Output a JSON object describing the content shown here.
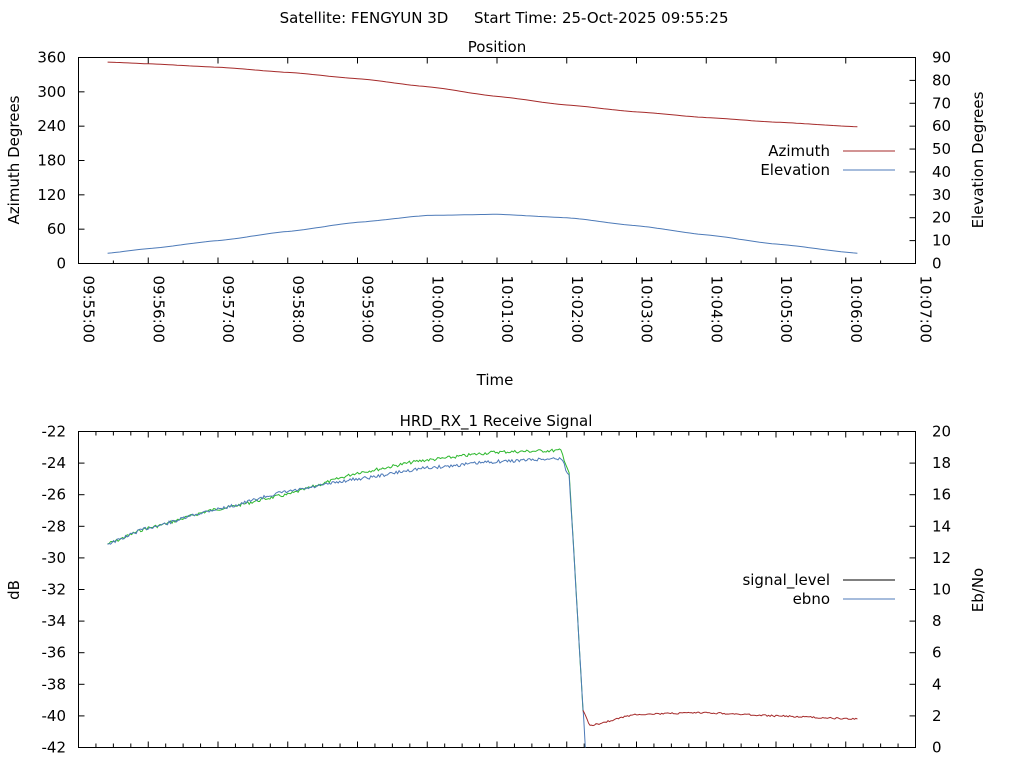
{
  "header": {
    "satellite_label": "Satellite: FENGYUN 3D",
    "start_label": "Start Time: 25-Oct-2025 09:55:25"
  },
  "colors": {
    "azimuth": "#a52a2a",
    "elevation": "#4d7ab8",
    "signal_level": "#000000",
    "ebno": "#4d7ab8",
    "signal_green": "#2eb82e",
    "signal_after": "#a52a2a"
  },
  "chart_data": [
    {
      "type": "line",
      "title": "Position",
      "xlabel": "Time",
      "ylabel": "Azimuth Degrees",
      "y2label": "Elevation Degrees",
      "ylim": [
        0,
        360
      ],
      "y2lim": [
        0,
        90
      ],
      "yticks": [
        "360",
        "300",
        "240",
        "180",
        "120",
        "60",
        "0"
      ],
      "y2ticks": [
        "90",
        "80",
        "70",
        "60",
        "50",
        "40",
        "30",
        "20",
        "10",
        "0"
      ],
      "xticks": [
        "09:55:00",
        "09:56:00",
        "09:57:00",
        "09:58:00",
        "09:59:00",
        "10:00:00",
        "10:01:00",
        "10:02:00",
        "10:03:00",
        "10:04:00",
        "10:05:00",
        "10:06:00",
        "10:07:00"
      ],
      "legend": "right",
      "series": [
        {
          "name": "Azimuth",
          "axis": "left",
          "x": [
            "09:55:25",
            "09:56:00",
            "09:57:00",
            "09:58:00",
            "09:59:00",
            "10:00:00",
            "10:01:00",
            "10:02:00",
            "10:03:00",
            "10:04:00",
            "10:05:00",
            "10:06:10"
          ],
          "values": [
            352,
            349,
            343,
            334,
            323,
            309,
            292,
            277,
            265,
            255,
            247,
            239
          ]
        },
        {
          "name": "Elevation",
          "axis": "right",
          "x": [
            "09:55:25",
            "09:56:00",
            "09:57:00",
            "09:58:00",
            "09:59:00",
            "10:00:00",
            "10:01:00",
            "10:02:00",
            "10:03:00",
            "10:04:00",
            "10:05:00",
            "10:06:10"
          ],
          "values": [
            4.5,
            6.5,
            10,
            14,
            18,
            21,
            21.5,
            20,
            16.5,
            12.5,
            8.5,
            4.5
          ]
        }
      ]
    },
    {
      "type": "line",
      "title": "HRD_RX_1 Receive Signal",
      "xlabel": "",
      "ylabel": "dB",
      "y2label": "Eb/No",
      "ylim": [
        -42,
        -22
      ],
      "y2lim": [
        0,
        20
      ],
      "yticks": [
        "-22",
        "-24",
        "-26",
        "-28",
        "-30",
        "-32",
        "-34",
        "-36",
        "-38",
        "-40",
        "-42"
      ],
      "y2ticks": [
        "20",
        "18",
        "16",
        "14",
        "12",
        "10",
        "8",
        "6",
        "4",
        "2",
        "0"
      ],
      "legend": "right",
      "series": [
        {
          "name": "signal_level",
          "axis": "left",
          "x": [
            "09:55:25",
            "09:56:00",
            "09:57:00",
            "09:58:00",
            "09:59:00",
            "10:00:00",
            "10:01:00",
            "10:01:55",
            "10:02:02",
            "10:02:08",
            "10:02:14",
            "10:02:20",
            "10:03:00",
            "10:04:00",
            "10:05:00",
            "10:06:10"
          ],
          "values": [
            -29.1,
            -28.1,
            -26.9,
            -26.0,
            -24.6,
            -23.8,
            -23.3,
            -23.2,
            -24.6,
            -32.0,
            -39.7,
            -40.6,
            -39.9,
            -39.8,
            -40.0,
            -40.2
          ]
        },
        {
          "name": "ebno",
          "axis": "right",
          "x": [
            "09:55:25",
            "09:56:00",
            "09:57:00",
            "09:58:00",
            "09:59:00",
            "10:00:00",
            "10:01:00",
            "10:01:55",
            "10:02:02",
            "10:02:08",
            "10:02:16"
          ],
          "values": [
            12.9,
            13.9,
            15.1,
            16.2,
            17.0,
            17.7,
            18.1,
            18.3,
            17.2,
            10.0,
            0
          ]
        }
      ]
    }
  ]
}
